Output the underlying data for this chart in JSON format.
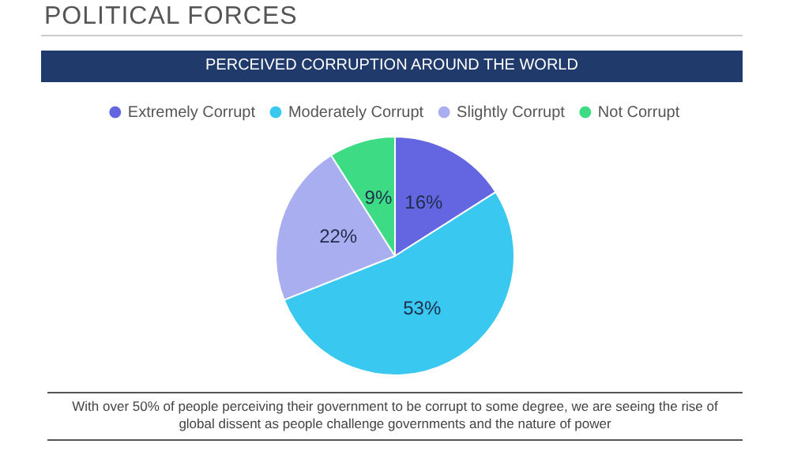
{
  "chart_data": {
    "type": "pie",
    "title": "POLITICAL FORCES",
    "subtitle": "PERCEIVED CORRUPTION AROUND THE WORLD",
    "categories": [
      "Extremely Corrupt",
      "Moderately Corrupt",
      "Slightly Corrupt",
      "Not Corrupt"
    ],
    "values": [
      16,
      53,
      22,
      9
    ],
    "value_labels": [
      "16%",
      "53%",
      "22%",
      "9%"
    ],
    "colors": [
      "#6366e0",
      "#38c8f0",
      "#a9aef0",
      "#3ddc84"
    ],
    "legend": "top",
    "annotations": [
      "With over 50% of people perceiving their government to be corrupt to some degree, we are seeing the rise of global dissent as people challenge governments and the nature of power"
    ]
  }
}
